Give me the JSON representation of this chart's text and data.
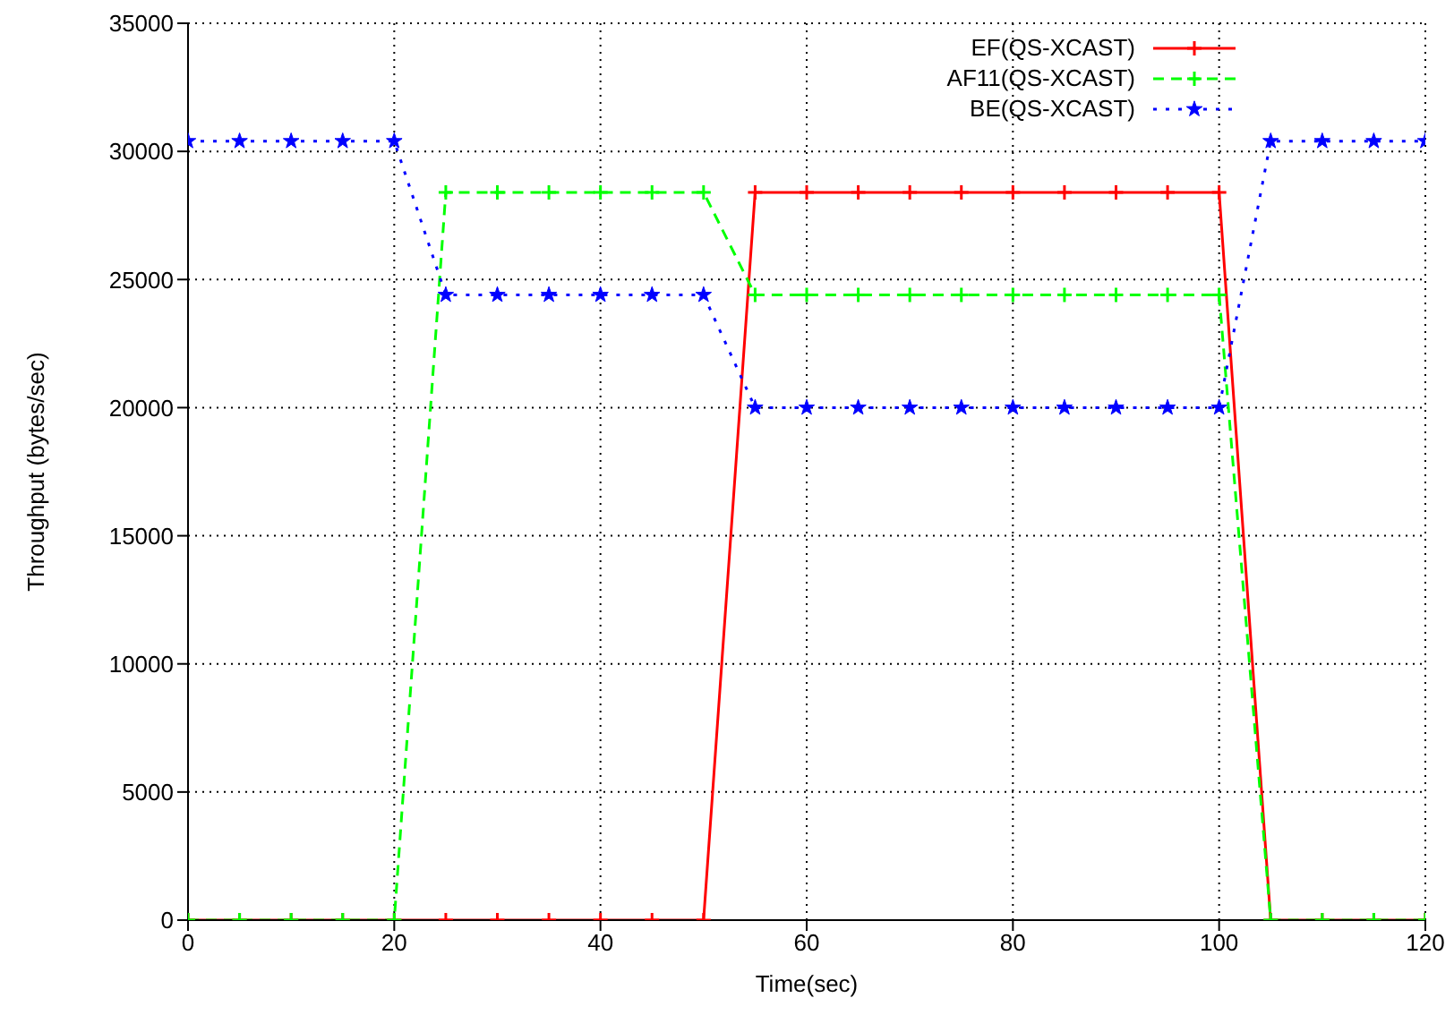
{
  "chart_data": {
    "type": "line",
    "xlabel": "Time(sec)",
    "ylabel": "Throughput (bytes/sec)",
    "x": [
      0,
      5,
      10,
      15,
      20,
      25,
      30,
      35,
      40,
      45,
      50,
      55,
      60,
      65,
      70,
      75,
      80,
      85,
      90,
      95,
      100,
      105,
      110,
      115,
      120
    ],
    "series": [
      {
        "name": "EF(QS-XCAST)",
        "color": "#ff0000",
        "marker": "cross",
        "line_style": "solid",
        "values": [
          0,
          0,
          0,
          0,
          0,
          0,
          0,
          0,
          0,
          0,
          0,
          28400,
          28400,
          28400,
          28400,
          28400,
          28400,
          28400,
          28400,
          28400,
          28400,
          0,
          0,
          0,
          0
        ]
      },
      {
        "name": "AF11(QS-XCAST)",
        "color": "#00ff00",
        "marker": "cross",
        "line_style": "dashed",
        "values": [
          0,
          0,
          0,
          0,
          0,
          28400,
          28400,
          28400,
          28400,
          28400,
          28400,
          24400,
          24400,
          24400,
          24400,
          24400,
          24400,
          24400,
          24400,
          24400,
          24400,
          0,
          0,
          0,
          0
        ]
      },
      {
        "name": "BE(QS-XCAST)",
        "color": "#0000ff",
        "marker": "star",
        "line_style": "dotted",
        "values": [
          30400,
          30400,
          30400,
          30400,
          30400,
          24400,
          24400,
          24400,
          24400,
          24400,
          24400,
          20000,
          20000,
          20000,
          20000,
          20000,
          20000,
          20000,
          20000,
          20000,
          20000,
          30400,
          30400,
          30400,
          30400
        ]
      }
    ],
    "xlim": [
      0,
      120
    ],
    "xticks": [
      0,
      20,
      40,
      60,
      80,
      100,
      120
    ],
    "ylim": [
      0,
      35000
    ],
    "yticks": [
      0,
      5000,
      10000,
      15000,
      20000,
      25000,
      30000,
      35000
    ],
    "grid": true,
    "legend": "top right"
  }
}
